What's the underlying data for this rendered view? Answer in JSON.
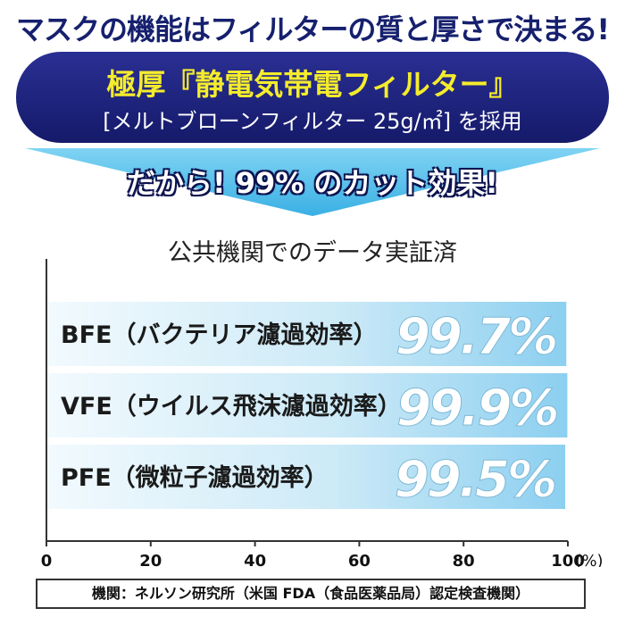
{
  "header": {
    "headline": "マスクの機能はフィルターの質と厚さで決まる!",
    "banner_title": "極厚『静電気帯電フィルター』",
    "banner_sub": "[メルトブローンフィルター 25g/㎡] を採用",
    "arrow_text": "だから! 99% のカット効果!"
  },
  "section_title": "公共機関でのデータ実証済",
  "colors": {
    "navy": "#16206e",
    "yellow": "#f5ec2c",
    "arrow_blue": "#5fc2ec",
    "bar_light": "#eef8fd",
    "bar_dark": "#8fd1ee"
  },
  "chart_data": {
    "type": "bar",
    "orientation": "horizontal",
    "categories": [
      "BFE（バクテリア濾過効率）",
      "VFE（ウイルス飛沫濾過効率）",
      "PFE（微粒子濾過効率）"
    ],
    "values": [
      99.7,
      99.9,
      99.5
    ],
    "value_labels": [
      "99.7%",
      "99.9%",
      "99.5%"
    ],
    "xlim": [
      0,
      100
    ],
    "xticks": [
      "0",
      "20",
      "40",
      "60",
      "80",
      "100"
    ],
    "xunit": "(%)",
    "grid": false
  },
  "footer": {
    "text": "機関：ネルソン研究所（米国 FDA（食品医薬品局）認定検査機関）"
  }
}
